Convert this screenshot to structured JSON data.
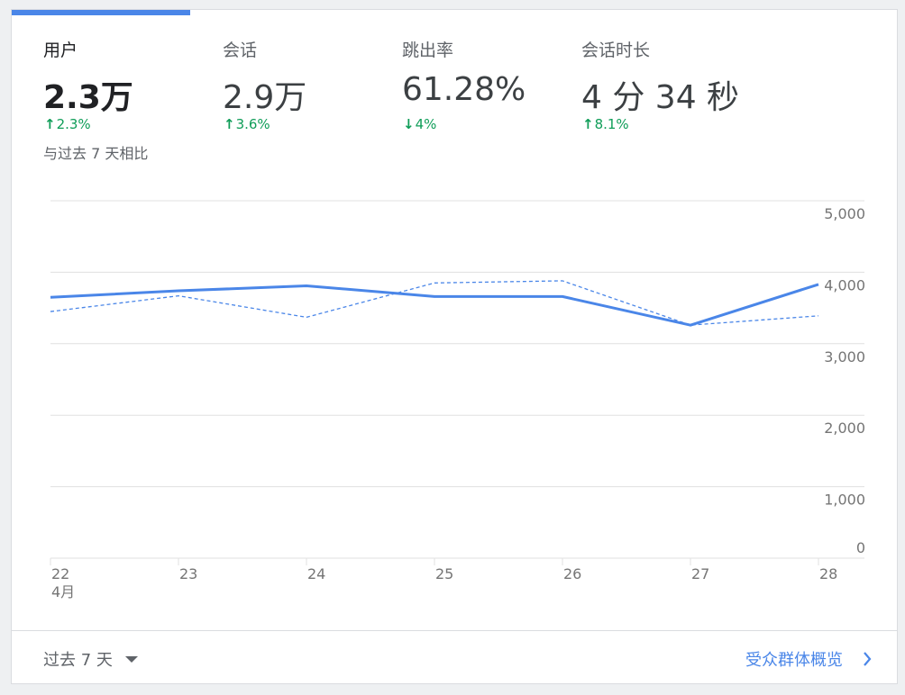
{
  "metrics": [
    {
      "label": "用户",
      "value": "2.3万",
      "change": "2.3%",
      "direction": "up",
      "active": true
    },
    {
      "label": "会话",
      "value": "2.9万",
      "change": "3.6%",
      "direction": "up",
      "active": false
    },
    {
      "label": "跳出率",
      "value": "61.28%",
      "change": "4%",
      "direction": "down",
      "active": false
    },
    {
      "label": "会话时长",
      "value": "4 分 34 秒",
      "change": "8.1%",
      "direction": "up",
      "active": false
    }
  ],
  "comparison_text": "与过去 7 天相比",
  "colors": {
    "accent": "#4a86e8",
    "positive": "#0f9d58",
    "grid": "#e0e0e0",
    "axis_text": "#757575"
  },
  "chart_data": {
    "type": "line",
    "x": [
      "22",
      "23",
      "24",
      "25",
      "26",
      "27",
      "28"
    ],
    "x_sublabel_first": "4月",
    "y_ticks": [
      "0",
      "1,000",
      "2,000",
      "3,000",
      "4,000",
      "5,000"
    ],
    "ylim": [
      0,
      5000
    ],
    "series": [
      {
        "style": "solid",
        "values": [
          3650,
          3740,
          3810,
          3660,
          3660,
          3260,
          3830
        ]
      },
      {
        "style": "dashed",
        "values": [
          3450,
          3670,
          3370,
          3850,
          3880,
          3260,
          3390
        ]
      }
    ],
    "grid": true
  },
  "footer": {
    "range_label": "过去 7 天",
    "overview_link": "受众群体概览"
  }
}
